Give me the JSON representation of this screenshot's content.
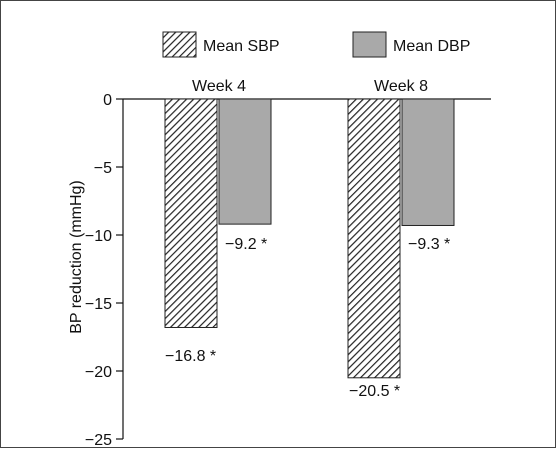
{
  "chart_data": {
    "type": "bar",
    "categories": [
      "Week 4",
      "Week 8"
    ],
    "series": [
      {
        "name": "Mean SBP",
        "values": [
          -16.8,
          -20.5
        ],
        "labels": [
          "−16.8 *",
          "−20.5 *"
        ],
        "fill": "hatched",
        "color": "#ffffff"
      },
      {
        "name": "Mean DBP",
        "values": [
          -9.2,
          -9.3
        ],
        "labels": [
          "−9.2 *",
          "−9.3 *"
        ],
        "fill": "solid",
        "color": "#a9a9a9"
      }
    ],
    "ylabel": "BP reduction (mmHg)",
    "xlabel": "",
    "title": "",
    "ylim": [
      -25,
      0
    ],
    "yticks": [
      0,
      -5,
      -10,
      -15,
      -20,
      -25
    ],
    "ytick_labels": [
      "0",
      "−5",
      "−10",
      "−15",
      "−20",
      "−25"
    ],
    "category_labels_position": "top",
    "legend_position": "top",
    "grid": false
  }
}
